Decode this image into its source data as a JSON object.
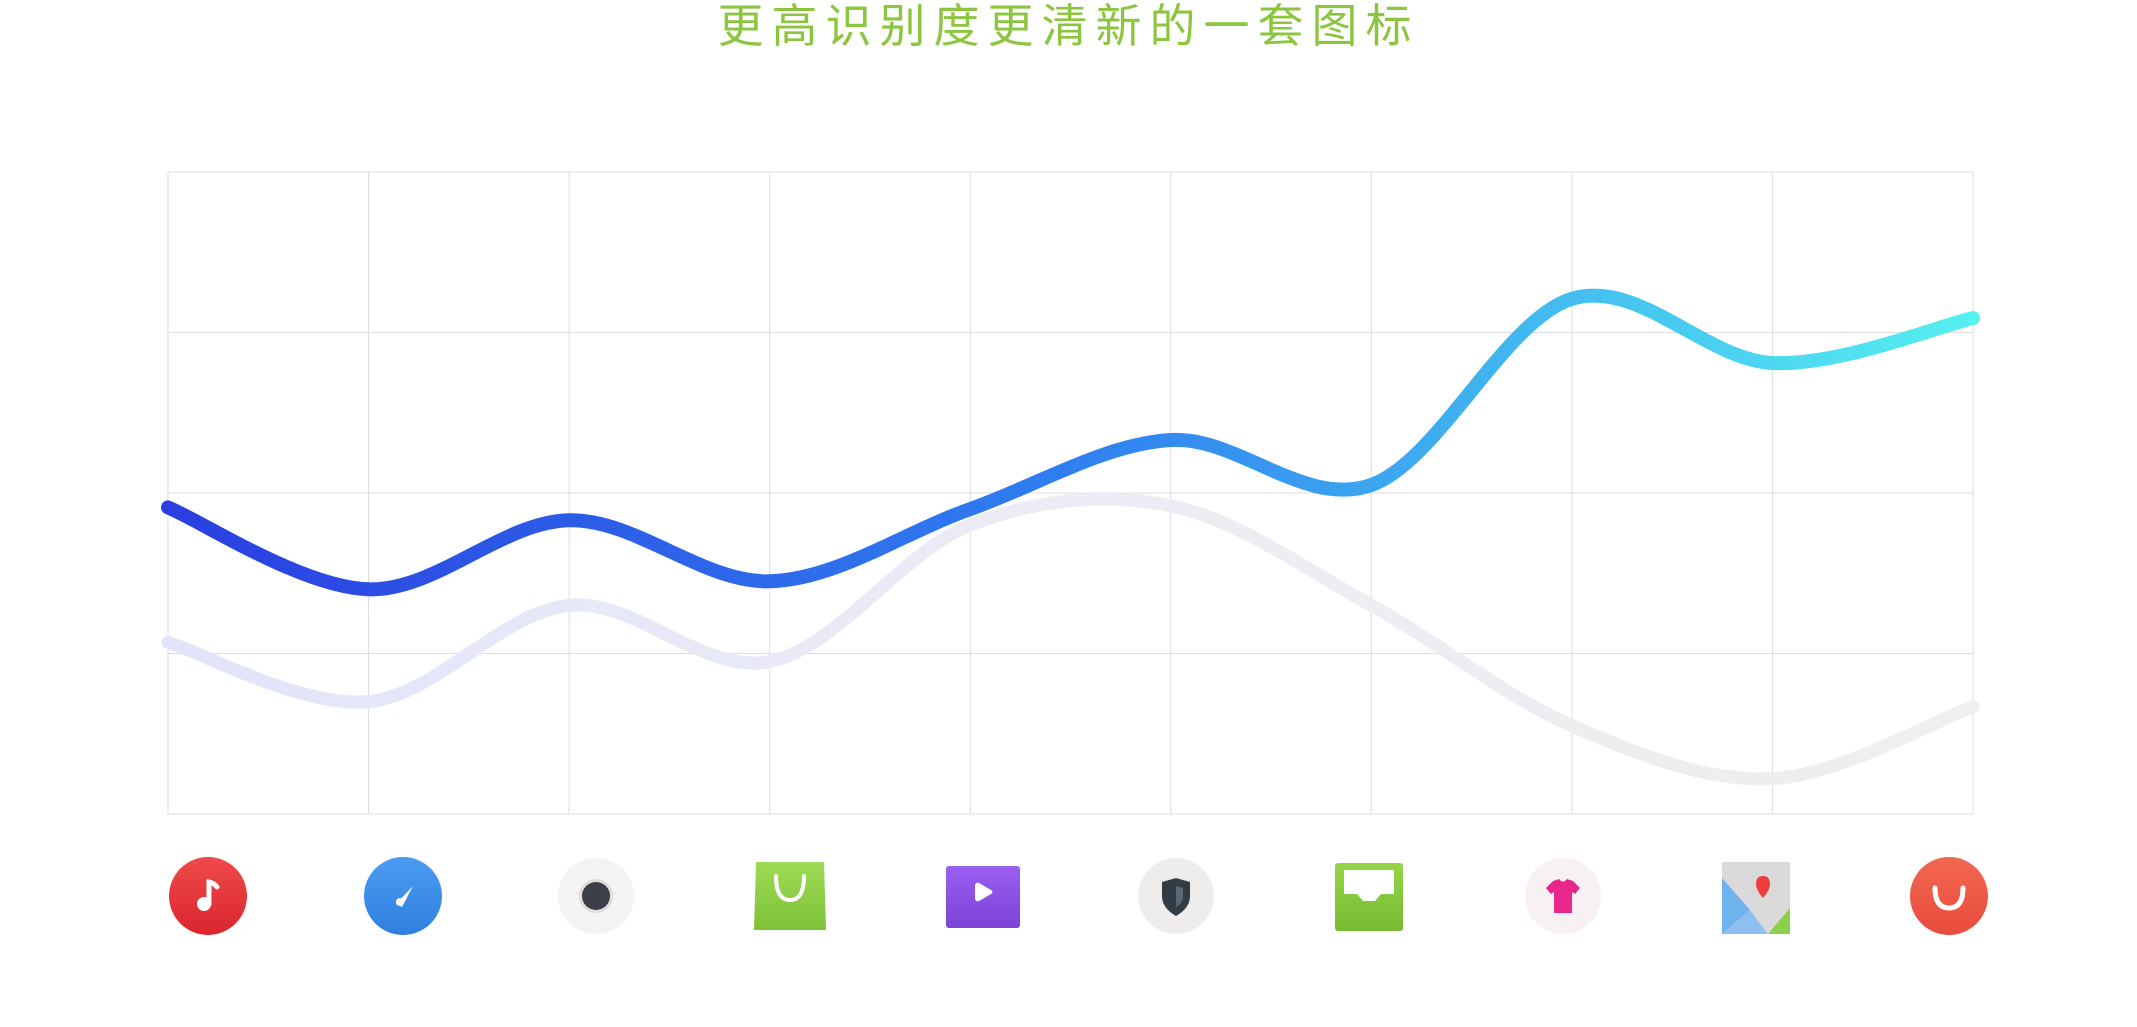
{
  "title": "更高识别度更清新的一套图标",
  "chart_data": {
    "type": "line",
    "x": [
      0,
      1,
      2,
      3,
      4,
      5,
      6,
      7,
      8,
      9
    ],
    "ylim": [
      0,
      4
    ],
    "grid": true,
    "smooth": true,
    "series": [
      {
        "values": [
          1.91,
          1.4,
          1.83,
          1.45,
          1.9,
          2.33,
          2.05,
          3.21,
          2.81,
          3.09
        ],
        "gradient": [
          "#2a3fe0",
          "#2f7ff0",
          "#55f0f0"
        ],
        "stroke": "strong"
      },
      {
        "values": [
          1.07,
          0.7,
          1.3,
          0.95,
          1.8,
          1.92,
          1.3,
          0.55,
          0.22,
          0.67
        ],
        "gradient": [
          "#e2e4fb",
          "#ececf4",
          "#efefef"
        ],
        "stroke": "faded"
      }
    ]
  },
  "icons": [
    {
      "name": "music-icon",
      "bg": "#e8343c"
    },
    {
      "name": "compass-icon",
      "bg": "#3f8fe6"
    },
    {
      "name": "camera-icon",
      "bg": "#f4f2f2"
    },
    {
      "name": "shopping-bag-icon",
      "bg": "#8fd04a"
    },
    {
      "name": "video-icon",
      "bg": "#8b52e6"
    },
    {
      "name": "shield-icon",
      "bg": "#efedec"
    },
    {
      "name": "inbox-icon",
      "bg": "#86cc3e"
    },
    {
      "name": "tshirt-icon",
      "bg": "#f7f1f1"
    },
    {
      "name": "map-icon",
      "bg": "#dcdcdc"
    },
    {
      "name": "smile-icon",
      "bg": "#ef5a48"
    }
  ]
}
